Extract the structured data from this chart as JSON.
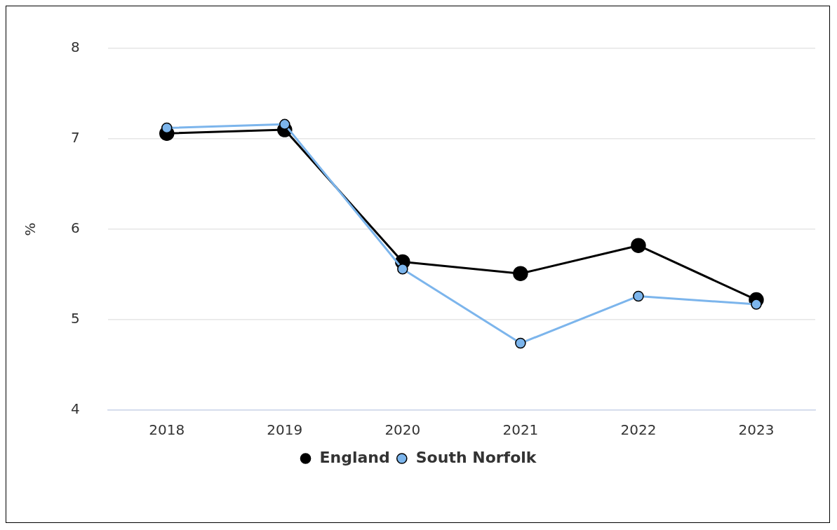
{
  "chart_data": {
    "type": "line",
    "ylabel": "%",
    "categories": [
      "2018",
      "2019",
      "2020",
      "2021",
      "2022",
      "2023"
    ],
    "series": [
      {
        "name": "England",
        "color": "#000000",
        "values": [
          7.06,
          7.1,
          5.64,
          5.51,
          5.82,
          5.22
        ]
      },
      {
        "name": "South Norfolk",
        "color": "#7cb5ec",
        "values": [
          7.12,
          7.16,
          5.56,
          4.74,
          5.26,
          5.17
        ]
      }
    ],
    "ylim": [
      4,
      8
    ],
    "yticks": [
      4,
      5,
      6,
      7,
      8
    ],
    "grid": "y",
    "legend": "bottom",
    "marker": "circle",
    "line_style": "solid"
  }
}
